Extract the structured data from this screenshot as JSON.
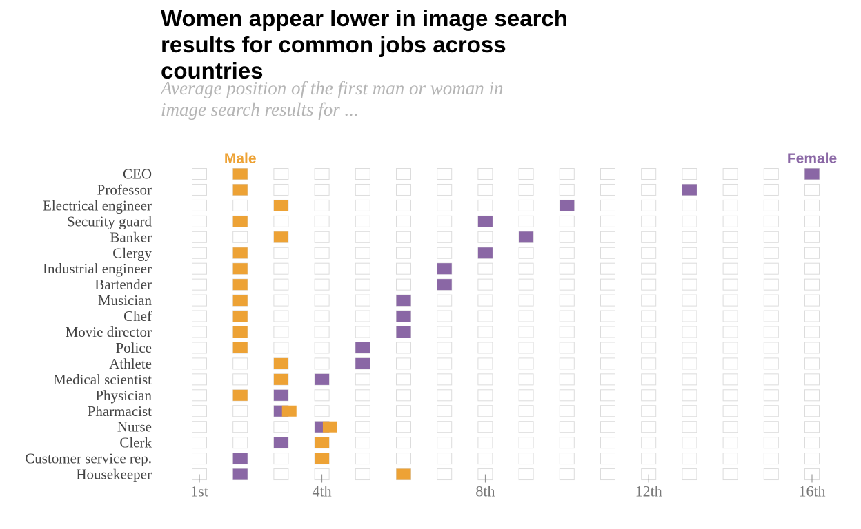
{
  "title": "Women appear lower in image search results for common jobs across countries",
  "subtitle": "Average position of the first man or woman in image search results for ...",
  "colors": {
    "male": "#eda235",
    "female": "#8a67a5",
    "empty_stroke": "#dcdcdc",
    "axis_text": "#777777",
    "label_text": "#444444"
  },
  "chart_data": {
    "type": "scatter",
    "legend": {
      "male_label": "Male",
      "female_label": "Female",
      "placement": "top"
    },
    "x_ticks": [
      {
        "value": 1,
        "label": "1st"
      },
      {
        "value": 4,
        "label": "4th"
      },
      {
        "value": 8,
        "label": "8th"
      },
      {
        "value": 12,
        "label": "12th"
      },
      {
        "value": 16,
        "label": "16th"
      }
    ],
    "xlim": [
      1,
      16
    ],
    "jobs": [
      {
        "job": "CEO",
        "male": 2.0,
        "female": 16.0
      },
      {
        "job": "Professor",
        "male": 2.0,
        "female": 13.0
      },
      {
        "job": "Electrical engineer",
        "male": 3.0,
        "female": 10.0
      },
      {
        "job": "Security guard",
        "male": 2.0,
        "female": 8.0
      },
      {
        "job": "Banker",
        "male": 3.0,
        "female": 9.0
      },
      {
        "job": "Clergy",
        "male": 2.0,
        "female": 8.0
      },
      {
        "job": "Industrial engineer",
        "male": 2.0,
        "female": 7.0
      },
      {
        "job": "Bartender",
        "male": 2.0,
        "female": 7.0
      },
      {
        "job": "Musician",
        "male": 2.0,
        "female": 6.0
      },
      {
        "job": "Chef",
        "male": 2.0,
        "female": 6.0
      },
      {
        "job": "Movie director",
        "male": 2.0,
        "female": 6.0
      },
      {
        "job": "Police",
        "male": 2.0,
        "female": 5.0
      },
      {
        "job": "Athlete",
        "male": 3.0,
        "female": 5.0
      },
      {
        "job": "Medical scientist",
        "male": 3.0,
        "female": 4.0
      },
      {
        "job": "Physician",
        "male": 2.0,
        "female": 3.0
      },
      {
        "job": "Pharmacist",
        "male": 3.2,
        "female": 3.0
      },
      {
        "job": "Nurse",
        "male": 4.2,
        "female": 4.0
      },
      {
        "job": "Clerk",
        "male": 4.0,
        "female": 3.0
      },
      {
        "job": "Customer service rep.",
        "male": 4.0,
        "female": 2.0
      },
      {
        "job": "Housekeeper",
        "male": 6.0,
        "female": 2.0
      }
    ]
  }
}
